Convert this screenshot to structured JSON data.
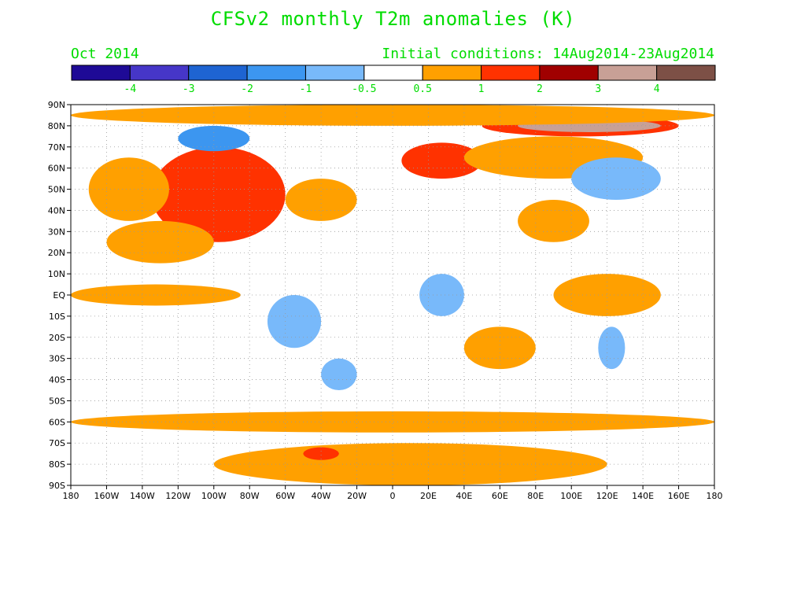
{
  "title": "CFSv2 monthly T2m anomalies (K)",
  "month": "Oct 2014",
  "initial_conditions": "Initial conditions: 14Aug2014-23Aug2014",
  "colorbar": {
    "bins": [
      {
        "from": null,
        "to": -4,
        "color": "#1e0a96"
      },
      {
        "from": -4,
        "to": -3,
        "color": "#4636c8"
      },
      {
        "from": -3,
        "to": -2,
        "color": "#1e64d2"
      },
      {
        "from": -2,
        "to": -1,
        "color": "#3c96f0"
      },
      {
        "from": -1,
        "to": -0.5,
        "color": "#78b9fa"
      },
      {
        "from": -0.5,
        "to": 0.5,
        "color": "#ffffff"
      },
      {
        "from": 0.5,
        "to": 1,
        "color": "#ffa000"
      },
      {
        "from": 1,
        "to": 2,
        "color": "#ff3200"
      },
      {
        "from": 2,
        "to": 3,
        "color": "#a00000"
      },
      {
        "from": 3,
        "to": 4,
        "color": "#c8a096"
      },
      {
        "from": 4,
        "to": null,
        "color": "#7d5046"
      }
    ],
    "tick_labels": [
      "-4",
      "-3",
      "-2",
      "-1",
      "-0.5",
      "0.5",
      "1",
      "2",
      "3",
      "4"
    ]
  },
  "map": {
    "lat_labels": [
      "90N",
      "80N",
      "70N",
      "60N",
      "50N",
      "40N",
      "30N",
      "20N",
      "10N",
      "EQ",
      "10S",
      "20S",
      "30S",
      "40S",
      "50S",
      "60S",
      "70S",
      "80S",
      "90S"
    ],
    "lon_labels": [
      "180",
      "160W",
      "140W",
      "120W",
      "100W",
      "80W",
      "60W",
      "40W",
      "20W",
      "0",
      "20E",
      "40E",
      "60E",
      "80E",
      "100E",
      "120E",
      "140E",
      "160E",
      "180"
    ],
    "label_color": "#00dc00",
    "anomaly_regions": [
      {
        "region": "North America",
        "lon": [
          -135,
          -60
        ],
        "lat": [
          25,
          70
        ],
        "level": 1.5
      },
      {
        "region": "Northeast Pacific",
        "lon": [
          -170,
          -125
        ],
        "lat": [
          35,
          65
        ],
        "level": 0.7
      },
      {
        "region": "Eastern tropical Pacific",
        "lon": [
          -160,
          -100
        ],
        "lat": [
          15,
          35
        ],
        "level": 0.7
      },
      {
        "region": "Equatorial Pacific",
        "lon": [
          -180,
          -85
        ],
        "lat": [
          -5,
          5
        ],
        "level": 0.7
      },
      {
        "region": "North Atlantic",
        "lon": [
          -60,
          -20
        ],
        "lat": [
          35,
          55
        ],
        "level": 0.7
      },
      {
        "region": "Northern Europe",
        "lon": [
          5,
          50
        ],
        "lat": [
          55,
          72
        ],
        "level": 1.5
      },
      {
        "region": "Siberia",
        "lon": [
          40,
          140
        ],
        "lat": [
          55,
          75
        ],
        "level": 0.7
      },
      {
        "region": "Arctic Siberia",
        "lon": [
          50,
          160
        ],
        "lat": [
          75,
          85
        ],
        "level": 1.5
      },
      {
        "region": "Kara-Laptev Sea",
        "lon": [
          70,
          150
        ],
        "lat": [
          77,
          83
        ],
        "level": 3.5
      },
      {
        "region": "Western Arctic",
        "lon": [
          -180,
          180
        ],
        "lat": [
          80,
          90
        ],
        "level": 0.7
      },
      {
        "region": "Canadian Archipelago",
        "lon": [
          -120,
          -80
        ],
        "lat": [
          68,
          80
        ],
        "level": -1.5
      },
      {
        "region": "Central Asia",
        "lon": [
          70,
          110
        ],
        "lat": [
          25,
          45
        ],
        "level": 0.7
      },
      {
        "region": "Maritime Continent",
        "lon": [
          90,
          150
        ],
        "lat": [
          -10,
          10
        ],
        "level": 0.7
      },
      {
        "region": "Central Africa",
        "lon": [
          15,
          40
        ],
        "lat": [
          -10,
          10
        ],
        "level": -1
      },
      {
        "region": "South America",
        "lon": [
          -70,
          -40
        ],
        "lat": [
          -25,
          0
        ],
        "level": -1
      },
      {
        "region": "South Atlantic",
        "lon": [
          -40,
          -20
        ],
        "lat": [
          -45,
          -30
        ],
        "level": -1
      },
      {
        "region": "Southern Ocean",
        "lon": [
          -180,
          180
        ],
        "lat": [
          -65,
          -55
        ],
        "level": 0.7
      },
      {
        "region": "Antarctica",
        "lon": [
          -100,
          120
        ],
        "lat": [
          -90,
          -70
        ],
        "level": 0.7
      },
      {
        "region": "Weddell Sea",
        "lon": [
          -50,
          -30
        ],
        "lat": [
          -78,
          -72
        ],
        "level": 1.5
      },
      {
        "region": "Western Australia",
        "lon": [
          115,
          130
        ],
        "lat": [
          -35,
          -15
        ],
        "level": -1
      },
      {
        "region": "Northeast Asia",
        "lon": [
          100,
          150
        ],
        "lat": [
          45,
          65
        ],
        "level": -1
      },
      {
        "region": "Southern Indian Ocean",
        "lon": [
          40,
          80
        ],
        "lat": [
          -35,
          -15
        ],
        "level": 0.7
      }
    ]
  }
}
